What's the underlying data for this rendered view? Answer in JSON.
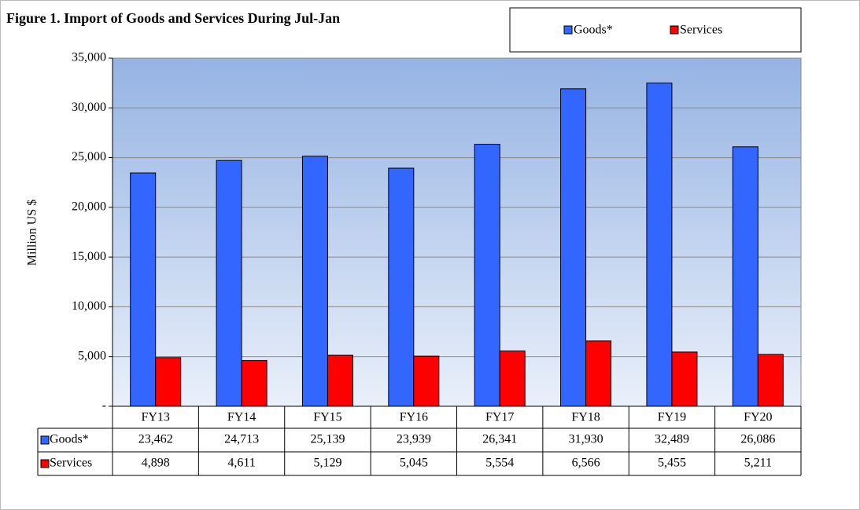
{
  "chart_data": {
    "type": "bar",
    "title": "Figure 1. Import of Goods and Services  During Jul-Jan",
    "y_label": "Million US $",
    "categories": [
      "FY13",
      "FY14",
      "FY15",
      "FY16",
      "FY17",
      "FY18",
      "FY19",
      "FY20"
    ],
    "series": [
      {
        "name": "Goods*",
        "color": "#3366ff",
        "values": [
          23462,
          24713,
          25139,
          23939,
          26341,
          31930,
          32489,
          26086
        ],
        "value_labels": [
          "23,462",
          "24,713",
          "25,139",
          "23,939",
          "26,341",
          "31,930",
          "32,489",
          "26,086"
        ]
      },
      {
        "name": "Services",
        "color": "#ff0000",
        "values": [
          4898,
          4611,
          5129,
          5045,
          5554,
          6566,
          5455,
          5211
        ],
        "value_labels": [
          "4,898",
          "4,611",
          "5,129",
          "5,045",
          "5,554",
          "6,566",
          "5,455",
          "5,211"
        ]
      }
    ],
    "ylim": [
      0,
      35000
    ],
    "yticks": [
      {
        "value": 0,
        "label": "-"
      },
      {
        "value": 5000,
        "label": "5,000"
      },
      {
        "value": 10000,
        "label": "10,000"
      },
      {
        "value": 15000,
        "label": "15,000"
      },
      {
        "value": 20000,
        "label": "20,000"
      },
      {
        "value": 25000,
        "label": "25,000"
      },
      {
        "value": 30000,
        "label": "30,000"
      },
      {
        "value": 35000,
        "label": "35,000"
      }
    ],
    "grid": true,
    "legend": "top-right"
  }
}
